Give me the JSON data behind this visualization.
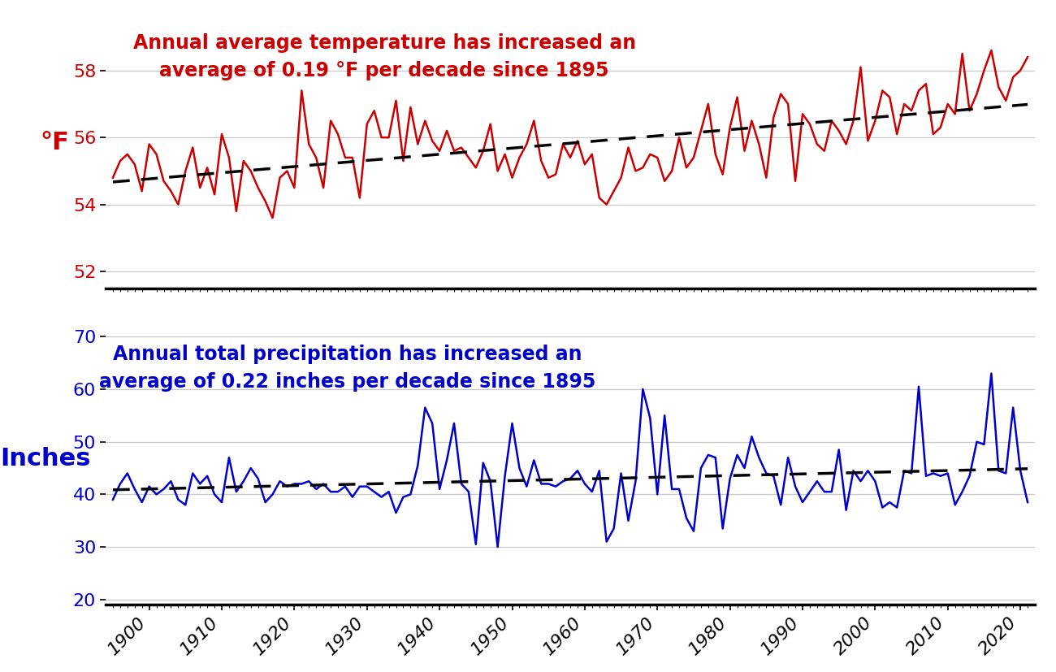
{
  "years": [
    1895,
    1896,
    1897,
    1898,
    1899,
    1900,
    1901,
    1902,
    1903,
    1904,
    1905,
    1906,
    1907,
    1908,
    1909,
    1910,
    1911,
    1912,
    1913,
    1914,
    1915,
    1916,
    1917,
    1918,
    1919,
    1920,
    1921,
    1922,
    1923,
    1924,
    1925,
    1926,
    1927,
    1928,
    1929,
    1930,
    1931,
    1932,
    1933,
    1934,
    1935,
    1936,
    1937,
    1938,
    1939,
    1940,
    1941,
    1942,
    1943,
    1944,
    1945,
    1946,
    1947,
    1948,
    1949,
    1950,
    1951,
    1952,
    1953,
    1954,
    1955,
    1956,
    1957,
    1958,
    1959,
    1960,
    1961,
    1962,
    1963,
    1964,
    1965,
    1966,
    1967,
    1968,
    1969,
    1970,
    1971,
    1972,
    1973,
    1974,
    1975,
    1976,
    1977,
    1978,
    1979,
    1980,
    1981,
    1982,
    1983,
    1984,
    1985,
    1986,
    1987,
    1988,
    1989,
    1990,
    1991,
    1992,
    1993,
    1994,
    1995,
    1996,
    1997,
    1998,
    1999,
    2000,
    2001,
    2002,
    2003,
    2004,
    2005,
    2006,
    2007,
    2008,
    2009,
    2010,
    2011,
    2012,
    2013,
    2014,
    2015,
    2016,
    2017,
    2018,
    2019,
    2020,
    2021
  ],
  "temp": [
    54.8,
    55.3,
    55.5,
    55.2,
    54.4,
    55.8,
    55.5,
    54.7,
    54.4,
    54.0,
    55.0,
    55.7,
    54.5,
    55.1,
    54.3,
    56.1,
    55.4,
    53.8,
    55.3,
    55.0,
    54.5,
    54.1,
    53.6,
    54.8,
    55.0,
    54.5,
    57.4,
    55.8,
    55.4,
    54.5,
    56.5,
    56.1,
    55.4,
    55.4,
    54.2,
    56.4,
    56.8,
    56.0,
    56.0,
    57.1,
    55.3,
    56.9,
    55.8,
    56.5,
    55.9,
    55.6,
    56.2,
    55.6,
    55.7,
    55.4,
    55.1,
    55.6,
    56.4,
    55.0,
    55.5,
    54.8,
    55.4,
    55.8,
    56.5,
    55.3,
    54.8,
    54.9,
    55.8,
    55.4,
    55.9,
    55.2,
    55.5,
    54.2,
    54.0,
    54.4,
    54.8,
    55.7,
    55.0,
    55.1,
    55.5,
    55.4,
    54.7,
    55.0,
    56.0,
    55.1,
    55.4,
    56.2,
    57.0,
    55.5,
    54.9,
    56.3,
    57.2,
    55.6,
    56.5,
    55.8,
    54.8,
    56.6,
    57.3,
    57.0,
    54.7,
    56.7,
    56.4,
    55.8,
    55.6,
    56.5,
    56.2,
    55.8,
    56.5,
    58.1,
    55.9,
    56.5,
    57.4,
    57.2,
    56.1,
    57.0,
    56.8,
    57.4,
    57.6,
    56.1,
    56.3,
    57.0,
    56.7,
    58.5,
    56.8,
    57.3,
    58.0,
    58.6,
    57.5,
    57.1,
    57.8,
    58.0,
    58.4
  ],
  "precip": [
    39.0,
    42.0,
    44.0,
    41.0,
    38.5,
    41.5,
    40.0,
    41.0,
    42.5,
    39.0,
    38.0,
    44.0,
    42.0,
    43.5,
    40.0,
    38.5,
    47.0,
    40.5,
    42.5,
    45.0,
    43.0,
    38.5,
    40.0,
    42.5,
    41.5,
    42.0,
    42.0,
    42.5,
    41.0,
    42.0,
    40.5,
    40.5,
    41.5,
    39.5,
    41.5,
    41.5,
    40.5,
    39.5,
    40.5,
    36.5,
    39.5,
    40.0,
    45.5,
    56.5,
    53.5,
    41.0,
    46.5,
    53.5,
    42.0,
    40.5,
    30.5,
    46.0,
    42.5,
    30.0,
    43.5,
    53.5,
    45.0,
    41.5,
    46.5,
    42.0,
    42.0,
    41.5,
    42.5,
    43.0,
    44.5,
    42.0,
    40.5,
    44.5,
    31.0,
    33.5,
    44.0,
    35.0,
    42.5,
    60.0,
    54.5,
    40.0,
    55.0,
    41.0,
    41.0,
    35.5,
    33.0,
    45.0,
    47.5,
    47.0,
    33.5,
    43.0,
    47.5,
    45.0,
    51.0,
    47.0,
    44.0,
    43.5,
    38.0,
    47.0,
    41.5,
    38.5,
    40.5,
    42.5,
    40.5,
    40.5,
    48.5,
    37.0,
    44.5,
    42.5,
    44.5,
    42.5,
    37.5,
    38.5,
    37.5,
    44.5,
    44.0,
    60.5,
    43.5,
    44.0,
    43.5,
    44.0,
    38.0,
    40.5,
    43.5,
    50.0,
    49.5,
    63.0,
    44.5,
    44.0,
    56.5,
    44.5,
    38.5
  ],
  "temp_color": "#cc0000",
  "precip_color": "#0000cc",
  "trend_color": "black",
  "trend_linestyle": "--",
  "trend_linewidth": 2.5,
  "data_linewidth": 1.8,
  "temp_ylabel": "°F",
  "precip_ylabel": "Inches",
  "temp_ylim": [
    51.5,
    59.5
  ],
  "precip_ylim": [
    19,
    70
  ],
  "temp_yticks": [
    52,
    54,
    56,
    58
  ],
  "precip_yticks": [
    20,
    30,
    40,
    50,
    60,
    70
  ],
  "temp_annotation": "Annual average temperature has increased an\naverage of 0.19 °F per decade since 1895",
  "precip_annotation": "Annual total precipitation has increased an\naverage of 0.22 inches per decade since 1895",
  "annotation_fontsize": 17,
  "ylabel_fontsize": 22,
  "tick_fontsize": 16,
  "background_color": "#ffffff",
  "grid_color": "#c8c8c8",
  "temp_trend_base_year": 1895,
  "temp_trend_base_val": 54.05,
  "temp_trend_rate": 0.019,
  "precip_trend_base_year": 1895,
  "precip_trend_base_val": 40.9,
  "precip_trend_rate": 0.022,
  "xlim_left": 1894,
  "xlim_right": 2022
}
